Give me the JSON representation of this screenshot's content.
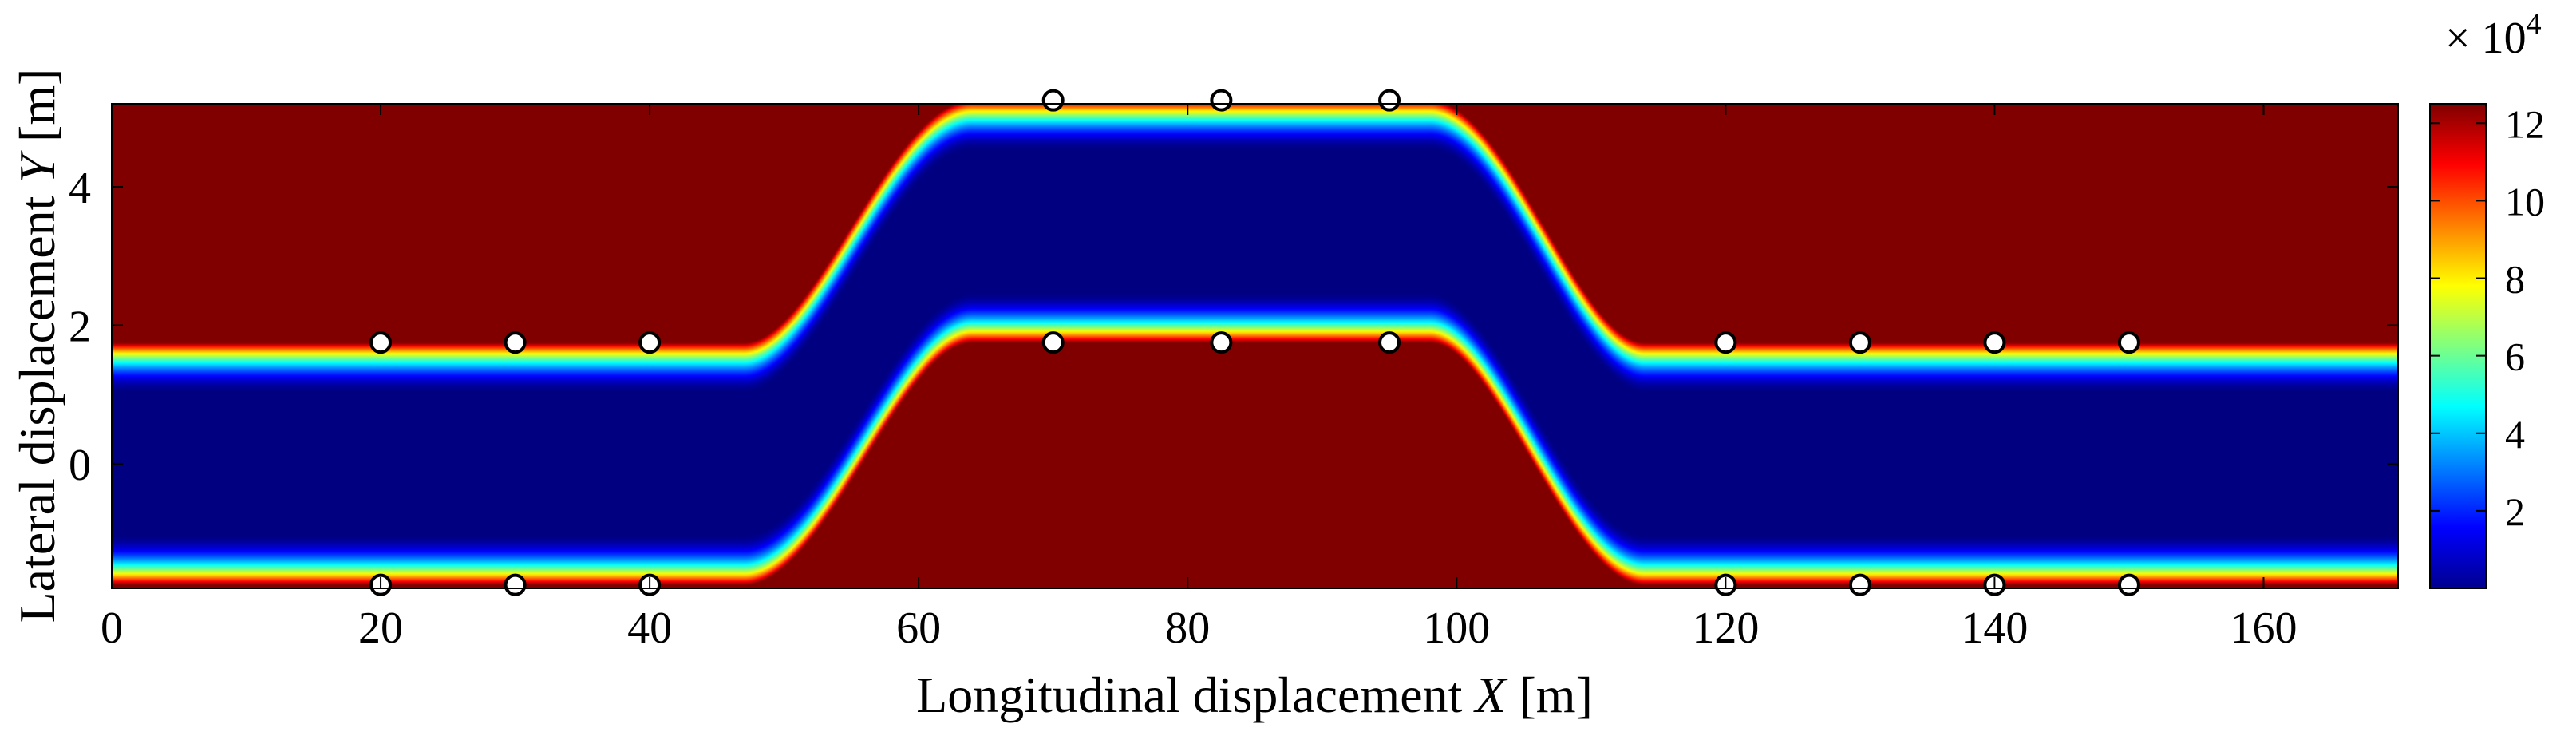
{
  "chart_data": {
    "type": "heatmap",
    "title": "",
    "xlabel": {
      "text": "Longitudinal displacement ",
      "var": "X",
      "unit": " [m]"
    },
    "ylabel": {
      "text": "Lateral displacement ",
      "var": "Y",
      "unit": " [m]"
    },
    "xlim": [
      0,
      170
    ],
    "ylim": [
      -1.8,
      5.2
    ],
    "xticks": [
      0,
      20,
      40,
      60,
      80,
      100,
      120,
      140,
      160
    ],
    "xtick_labels": [
      "0",
      "20",
      "40",
      "60",
      "80",
      "100",
      "120",
      "140",
      "160"
    ],
    "yticks": [
      0,
      2,
      4
    ],
    "ytick_labels": [
      "0",
      "2",
      "4"
    ],
    "field": {
      "description": "risk potential field along a lane-change path",
      "center_low": 0,
      "center_high": 3.5,
      "ramp_up": [
        47,
        64
      ],
      "ramp_down": [
        98,
        114
      ],
      "corridor_half_width": 1.8,
      "max_value": 125000
    },
    "obstacles": [
      {
        "x": 20,
        "y": 1.75
      },
      {
        "x": 30,
        "y": 1.75
      },
      {
        "x": 40,
        "y": 1.75
      },
      {
        "x": 70,
        "y": 1.75
      },
      {
        "x": 82.5,
        "y": 1.75
      },
      {
        "x": 95,
        "y": 1.75
      },
      {
        "x": 120,
        "y": 1.75
      },
      {
        "x": 130,
        "y": 1.75
      },
      {
        "x": 140,
        "y": 1.75
      },
      {
        "x": 150,
        "y": 1.75
      },
      {
        "x": 20,
        "y": -1.75
      },
      {
        "x": 30,
        "y": -1.75
      },
      {
        "x": 40,
        "y": -1.75
      },
      {
        "x": 120,
        "y": -1.75
      },
      {
        "x": 130,
        "y": -1.75
      },
      {
        "x": 140,
        "y": -1.75
      },
      {
        "x": 150,
        "y": -1.75
      },
      {
        "x": 70,
        "y": 5.25
      },
      {
        "x": 82.5,
        "y": 5.25
      },
      {
        "x": 95,
        "y": 5.25
      }
    ],
    "colorbar": {
      "colormap": "jet",
      "range": [
        0,
        12.5
      ],
      "ticks": [
        2,
        4,
        6,
        8,
        10,
        12
      ],
      "tick_labels": [
        "2",
        "4",
        "6",
        "8",
        "10",
        "12"
      ],
      "multiplier_prefix": "× 10",
      "multiplier_exp": "4"
    }
  }
}
